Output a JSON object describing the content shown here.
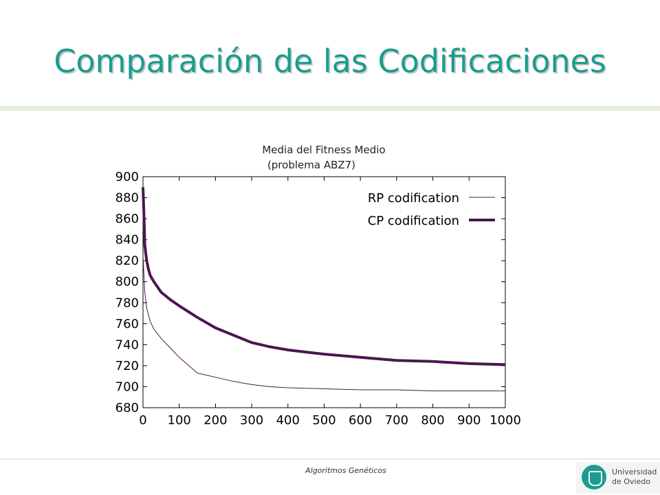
{
  "slide": {
    "title": "Comparación de las Codificaciones",
    "footer": "Algoritmos Genéticos"
  },
  "logo": {
    "text": "Universidad de Oviedo",
    "color": "#1a9c8e"
  },
  "colors": {
    "title": "#1a9c8e",
    "series": "#4a1650"
  },
  "chart_data": {
    "type": "line",
    "title": "Media del Fitness Medio",
    "subtitle": "(problema ABZ7)",
    "xlabel": "",
    "ylabel": "",
    "xlim": [
      0,
      1000
    ],
    "ylim": [
      680,
      900
    ],
    "xticks": [
      0,
      100,
      200,
      300,
      400,
      500,
      600,
      700,
      800,
      900,
      1000
    ],
    "yticks": [
      680,
      700,
      720,
      740,
      760,
      780,
      800,
      820,
      840,
      860,
      880,
      900
    ],
    "grid": false,
    "legend": "top-right",
    "series": [
      {
        "name": "RP codification",
        "color": "#4a1650",
        "style": "thin",
        "x": [
          0,
          5,
          10,
          20,
          30,
          50,
          75,
          100,
          150,
          200,
          250,
          300,
          350,
          400,
          500,
          600,
          700,
          800,
          900,
          1000
        ],
        "y": [
          825,
          790,
          775,
          762,
          755,
          746,
          737,
          728,
          713,
          709,
          705,
          702,
          700,
          699,
          698,
          697,
          697,
          696,
          696,
          696
        ]
      },
      {
        "name": "CP codification",
        "color": "#4a1650",
        "style": "thick",
        "x": [
          0,
          3,
          5,
          10,
          15,
          20,
          30,
          40,
          50,
          75,
          100,
          150,
          200,
          250,
          300,
          350,
          400,
          450,
          500,
          600,
          700,
          800,
          900,
          1000
        ],
        "y": [
          890,
          860,
          835,
          820,
          812,
          806,
          800,
          795,
          790,
          783,
          777,
          766,
          756,
          749,
          742,
          738,
          735,
          733,
          731,
          728,
          725,
          724,
          722,
          721
        ]
      }
    ]
  }
}
